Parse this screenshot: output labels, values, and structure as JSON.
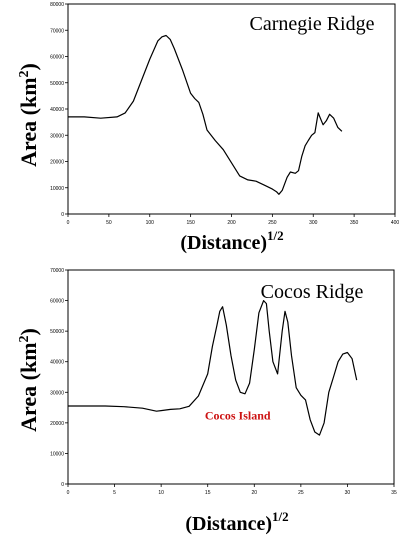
{
  "chart_data": [
    {
      "type": "line",
      "title": "Carnegie Ridge",
      "ylabel_base": "Area (km",
      "ylabel_sup": "2",
      "ylabel_end": ")",
      "xlabel_base": "(Distance)",
      "xlabel_sup": "1/2",
      "xlim": [
        0,
        400
      ],
      "ylim": [
        0,
        80000
      ],
      "xticks": [
        "0",
        "50",
        "100",
        "150",
        "200",
        "250",
        "300",
        "350",
        "400"
      ],
      "yticks": [
        "0",
        "10000",
        "20000",
        "30000",
        "40000",
        "50000",
        "60000",
        "70000",
        "80000"
      ],
      "grid": false,
      "series": [
        {
          "x": [
            0,
            20,
            40,
            60,
            70,
            80,
            90,
            100,
            110,
            115,
            120,
            125,
            130,
            140,
            150,
            155,
            160,
            165,
            170,
            180,
            190,
            200,
            210,
            220,
            230,
            240,
            250,
            255,
            258,
            262,
            268,
            272,
            278,
            282,
            286,
            290,
            294,
            298,
            302,
            306,
            308,
            312,
            316,
            320,
            325,
            330,
            335
          ],
          "y": [
            37000,
            37000,
            36500,
            37000,
            38500,
            43000,
            51000,
            59000,
            66000,
            67500,
            68000,
            66500,
            63000,
            55000,
            46000,
            44000,
            42500,
            38000,
            32000,
            28000,
            24500,
            19500,
            14500,
            13000,
            12500,
            11000,
            9500,
            8500,
            7500,
            9000,
            14000,
            16000,
            15500,
            16500,
            22000,
            26000,
            28000,
            30000,
            31000,
            38500,
            37000,
            34000,
            35500,
            38000,
            36500,
            33000,
            31500
          ]
        }
      ]
    },
    {
      "type": "line",
      "title": "Cocos Ridge",
      "ylabel_base": "Area (km",
      "ylabel_sup": "2",
      "ylabel_end": ")",
      "xlabel_base": "(Distance)",
      "xlabel_sup": "1/2",
      "xlim": [
        0,
        35
      ],
      "ylim": [
        0,
        70000
      ],
      "xticks": [
        "0",
        "5",
        "10",
        "15",
        "20",
        "25",
        "30",
        "35"
      ],
      "yticks": [
        "0",
        "10000",
        "20000",
        "30000",
        "40000",
        "50000",
        "60000",
        "70000"
      ],
      "grid": false,
      "annotation": {
        "text": "Cocos Island",
        "color": "#cc1111",
        "x": 15,
        "y": 22000
      },
      "series": [
        {
          "x": [
            0,
            2,
            4,
            6,
            8,
            9.5,
            10,
            11,
            12,
            13,
            14,
            15,
            15.5,
            16,
            16.3,
            16.6,
            17,
            17.5,
            18,
            18.5,
            19,
            19.5,
            20,
            20.5,
            21,
            21.3,
            21.6,
            22,
            22.5,
            23,
            23.3,
            23.6,
            24,
            24.5,
            25,
            25.5,
            26,
            26.5,
            27,
            27.5,
            28,
            28.5,
            29,
            29.5,
            30,
            30.5,
            31
          ],
          "y": [
            25500,
            25500,
            25500,
            25300,
            24800,
            23800,
            24000,
            24400,
            24600,
            25400,
            28800,
            36000,
            45000,
            52000,
            56500,
            58000,
            52000,
            42000,
            34000,
            30000,
            29500,
            33000,
            44000,
            56000,
            60000,
            59000,
            50000,
            40000,
            36000,
            50000,
            56500,
            53000,
            42000,
            31500,
            29000,
            27500,
            21000,
            17000,
            16000,
            20000,
            30000,
            35000,
            40000,
            42500,
            43000,
            41000,
            34000
          ]
        }
      ]
    }
  ]
}
